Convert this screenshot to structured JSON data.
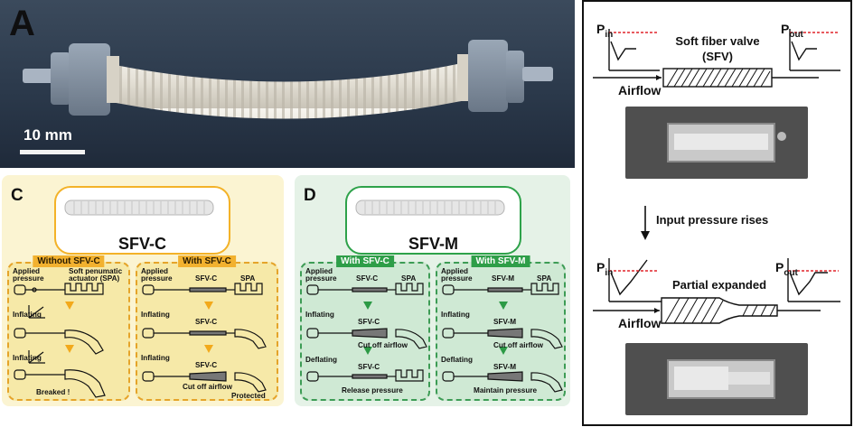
{
  "panel_a": {
    "letter": "A",
    "scale_bar_label": "10 mm"
  },
  "panel_c": {
    "letter": "C",
    "device_title": "SFV-C",
    "columns": [
      {
        "header": "Without SFV-C",
        "labels": {
          "applied": "Applied",
          "pressure": "pressure",
          "spa_line1": "Soft penumatic",
          "spa_line2": "actuator (SPA)",
          "inflating1": "Inflating",
          "inflating2": "Inflating",
          "result": "Breaked !"
        }
      },
      {
        "header": "With SFV-C",
        "labels": {
          "applied": "Applied",
          "pressure": "pressure",
          "valve": "SFV-C",
          "spa": "SPA",
          "inflating1": "Inflating",
          "valve2": "SFV-C",
          "inflating2": "Inflating",
          "valve3": "SFV-C",
          "cutoff": "Cut off airflow",
          "result": "Protected"
        }
      }
    ]
  },
  "panel_d": {
    "letter": "D",
    "device_title": "SFV-M",
    "columns": [
      {
        "header": "With SFV-C",
        "labels": {
          "applied": "Applied",
          "pressure": "pressure",
          "valve": "SFV-C",
          "spa": "SPA",
          "inflating": "Inflating",
          "valve2": "SFV-C",
          "cutoff": "Cut off airflow",
          "deflating": "Deflating",
          "valve3": "SFV-C",
          "result": "Release pressure"
        }
      },
      {
        "header": "With SFV-M",
        "labels": {
          "applied": "Applied",
          "pressure": "pressure",
          "valve": "SFV-M",
          "spa": "SPA",
          "inflating": "Inflating",
          "valve2": "SFV-M",
          "cutoff": "Cut off airflow",
          "deflating": "Deflating",
          "valve3": "SFV-M",
          "result": "Maintain pressure"
        }
      }
    ]
  },
  "panel_right": {
    "top": {
      "p_in": "P",
      "p_in_sub": "in",
      "p_out": "P",
      "p_out_sub": "out",
      "valve_line1": "Soft fiber valve",
      "valve_line2": "(SFV)",
      "airflow": "Airflow"
    },
    "transition": "Input pressure rises",
    "bottom": {
      "p_in": "P",
      "p_in_sub": "in",
      "p_out": "P",
      "p_out_sub": "out",
      "valve_label": "Partial expanded",
      "airflow": "Airflow"
    }
  },
  "colors": {
    "orange": "#f2b12f",
    "green": "#2e9e48",
    "red_dashed": "#e0232a"
  }
}
